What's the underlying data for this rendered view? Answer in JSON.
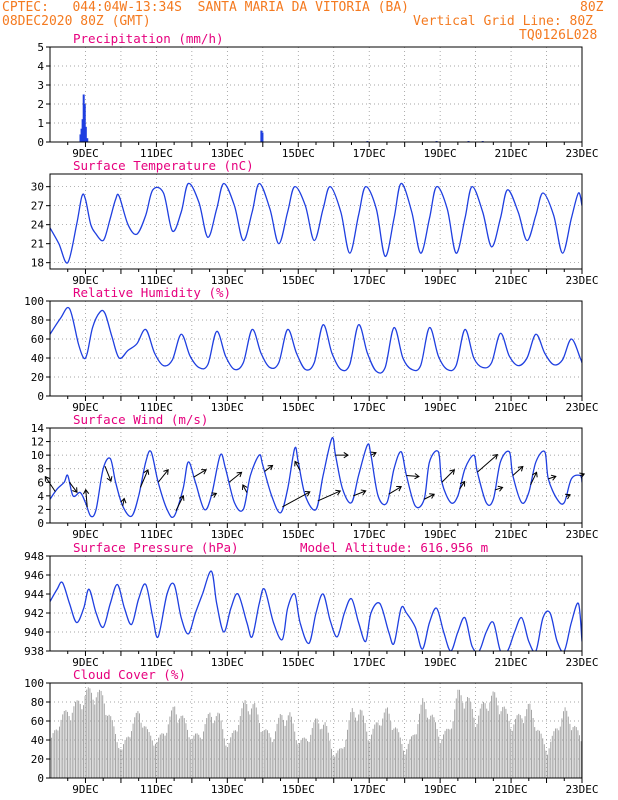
{
  "header": {
    "line1_left": "CPTEC:   044:04W-13:34S  SANTA MARIA DA VITORIA (BA)",
    "line1_right": "80Z",
    "line2_left": "08DEC2020 80Z (GMT)",
    "line2_right": "Vertical Grid Line: 80Z",
    "line3_right": "TQ0126L028"
  },
  "colors": {
    "header": "#f47a20",
    "title": "#e6007e",
    "line": "#1f3fe0",
    "cloud": "#a6a6a6",
    "arrow": "#000000"
  },
  "x_axis": {
    "labels": [
      "9DEC",
      "11DEC",
      "13DEC",
      "15DEC",
      "17DEC",
      "19DEC",
      "21DEC",
      "23DEC"
    ],
    "start_day": 8.0,
    "end_day": 23.0
  },
  "chart_data": [
    {
      "type": "bar",
      "name": "precipitation",
      "title": "Precipitation (mm/h)",
      "ylim": [
        0,
        5
      ],
      "yticks": [
        "0",
        "1",
        "2",
        "3",
        "4",
        "5"
      ],
      "grid": true,
      "x_days": [
        8.86,
        8.89,
        8.92,
        8.95,
        8.98,
        9.01,
        9.05,
        13.96,
        13.99,
        16.95,
        18.9,
        19.8,
        20.2
      ],
      "values": [
        0.4,
        0.7,
        1.2,
        2.5,
        2.0,
        0.8,
        0.2,
        0.6,
        0.5,
        0.05,
        0.05,
        0.05,
        0.05
      ]
    },
    {
      "type": "line",
      "name": "temperature",
      "title": "Surface Temperature (nC)",
      "ylim": [
        17,
        32
      ],
      "yticks": [
        "18",
        "21",
        "24",
        "27",
        "30"
      ],
      "grid": true,
      "x_days": [
        8.0,
        8.25,
        8.5,
        8.75,
        8.9,
        9.0,
        9.15,
        9.3,
        9.45,
        9.55,
        9.7,
        9.85,
        9.95,
        10.2,
        10.45,
        10.7,
        10.9,
        11.2,
        11.45,
        11.7,
        11.9,
        12.2,
        12.45,
        12.7,
        12.9,
        13.2,
        13.45,
        13.7,
        13.9,
        14.2,
        14.45,
        14.7,
        14.9,
        15.2,
        15.45,
        15.7,
        15.9,
        16.2,
        16.45,
        16.7,
        16.9,
        17.2,
        17.45,
        17.7,
        17.9,
        18.2,
        18.45,
        18.7,
        18.9,
        19.2,
        19.45,
        19.7,
        19.9,
        20.2,
        20.45,
        20.7,
        20.9,
        21.2,
        21.45,
        21.7,
        21.9,
        22.2,
        22.45,
        22.7,
        22.9,
        23.0
      ],
      "values": [
        23.5,
        21.0,
        18.0,
        24.0,
        28.5,
        28.0,
        24.0,
        22.5,
        21.5,
        22.0,
        25.0,
        28.0,
        28.5,
        24.0,
        22.5,
        25.5,
        29.5,
        29.0,
        23.0,
        26.0,
        30.5,
        27.5,
        22.0,
        26.5,
        30.5,
        27.0,
        21.5,
        26.0,
        30.5,
        26.5,
        21.0,
        26.0,
        30.0,
        27.0,
        21.5,
        26.5,
        30.0,
        26.0,
        19.5,
        25.5,
        30.0,
        26.5,
        19.0,
        25.0,
        30.5,
        26.0,
        19.5,
        25.0,
        30.0,
        26.5,
        19.5,
        25.0,
        30.0,
        26.0,
        20.5,
        25.0,
        29.5,
        26.0,
        21.5,
        25.5,
        29.0,
        25.5,
        19.5,
        25.0,
        29.0,
        27.0
      ]
    },
    {
      "type": "line",
      "name": "relative_humidity",
      "title": "Relative Humidity (%)",
      "ylim": [
        0,
        100
      ],
      "yticks": [
        "0",
        "20",
        "40",
        "60",
        "80",
        "100"
      ],
      "grid": true,
      "x_days": [
        8.0,
        8.3,
        8.55,
        8.8,
        8.95,
        9.05,
        9.2,
        9.4,
        9.55,
        9.75,
        9.95,
        10.2,
        10.45,
        10.7,
        10.95,
        11.2,
        11.45,
        11.7,
        11.95,
        12.2,
        12.45,
        12.7,
        12.95,
        13.2,
        13.45,
        13.7,
        13.95,
        14.2,
        14.45,
        14.7,
        14.95,
        15.2,
        15.45,
        15.7,
        15.95,
        16.2,
        16.45,
        16.7,
        16.95,
        17.2,
        17.45,
        17.7,
        17.95,
        18.2,
        18.45,
        18.7,
        18.95,
        19.2,
        19.45,
        19.7,
        19.95,
        20.2,
        20.45,
        20.7,
        20.95,
        21.2,
        21.45,
        21.7,
        21.95,
        22.2,
        22.45,
        22.7,
        22.95,
        23.0
      ],
      "values": [
        65,
        82,
        92,
        55,
        40,
        45,
        72,
        88,
        87,
        62,
        40,
        48,
        55,
        70,
        45,
        32,
        38,
        65,
        42,
        30,
        33,
        68,
        42,
        28,
        35,
        70,
        45,
        30,
        35,
        70,
        45,
        28,
        35,
        75,
        45,
        28,
        33,
        75,
        45,
        26,
        30,
        72,
        40,
        28,
        32,
        72,
        42,
        28,
        32,
        70,
        40,
        30,
        35,
        66,
        42,
        32,
        40,
        65,
        45,
        33,
        38,
        60,
        40,
        35
      ]
    },
    {
      "type": "line",
      "name": "surface_wind",
      "title": "Surface Wind (m/s)",
      "ylim": [
        0,
        14
      ],
      "yticks": [
        "0",
        "2",
        "4",
        "6",
        "8",
        "10",
        "12",
        "14"
      ],
      "grid": true,
      "x_days": [
        8.0,
        8.2,
        8.4,
        8.5,
        8.65,
        8.85,
        9.0,
        9.15,
        9.3,
        9.5,
        9.7,
        9.85,
        10.05,
        10.3,
        10.5,
        10.7,
        10.85,
        11.05,
        11.3,
        11.5,
        11.75,
        11.9,
        12.1,
        12.35,
        12.55,
        12.8,
        12.95,
        13.2,
        13.45,
        13.65,
        13.9,
        14.0,
        14.25,
        14.5,
        14.7,
        14.9,
        15.0,
        15.2,
        15.5,
        15.7,
        15.95,
        16.05,
        16.25,
        16.5,
        16.7,
        16.95,
        17.05,
        17.25,
        17.5,
        17.7,
        17.9,
        18.05,
        18.3,
        18.55,
        18.7,
        18.95,
        19.05,
        19.3,
        19.5,
        19.7,
        19.95,
        20.05,
        20.3,
        20.5,
        20.7,
        20.95,
        21.05,
        21.3,
        21.5,
        21.7,
        21.95,
        22.05,
        22.3,
        22.5,
        22.7,
        22.95,
        23.0
      ],
      "values": [
        3.5,
        5.0,
        6.0,
        7.0,
        4.0,
        4.5,
        3.0,
        1.0,
        2.0,
        8.0,
        9.5,
        6.0,
        2.5,
        1.0,
        4.0,
        9.0,
        10.5,
        6.0,
        2.0,
        1.0,
        5.0,
        9.0,
        6.0,
        2.0,
        4.0,
        10.0,
        8.0,
        3.0,
        2.0,
        7.0,
        10.0,
        8.5,
        4.0,
        1.5,
        5.0,
        11.0,
        9.0,
        4.0,
        2.0,
        7.0,
        12.5,
        10.0,
        5.0,
        3.0,
        7.0,
        11.5,
        10.0,
        4.0,
        3.0,
        8.0,
        10.5,
        7.0,
        2.5,
        3.5,
        9.0,
        10.5,
        6.0,
        3.0,
        4.0,
        8.0,
        10.0,
        7.5,
        3.0,
        3.5,
        9.0,
        10.5,
        7.0,
        3.0,
        4.5,
        9.0,
        10.5,
        6.5,
        3.5,
        3.0,
        6.5,
        7.0,
        6.0
      ],
      "vectors": {
        "x_days": [
          8.15,
          8.55,
          9.05,
          9.55,
          10.05,
          10.55,
          11.05,
          11.55,
          12.05,
          12.55,
          13.05,
          13.55,
          14.05,
          14.55,
          15.05,
          15.55,
          16.05,
          16.55,
          17.05,
          17.55,
          18.05,
          18.55,
          19.05,
          19.55,
          20.05,
          20.55,
          21.05,
          21.55,
          22.05,
          22.55,
          22.95
        ],
        "u": [
          -2.0,
          1.5,
          -0.3,
          1.2,
          0.3,
          1.5,
          2.0,
          1.5,
          2.5,
          1.0,
          2.5,
          -0.8,
          1.6,
          5.5,
          -1.0,
          4.5,
          2.5,
          2.5,
          1.0,
          2.5,
          2.5,
          2.0,
          2.5,
          1.0,
          4.0,
          1.5,
          2.0,
          1.2,
          1.5,
          0.8,
          0.8
        ],
        "v": [
          3.0,
          -2.0,
          3.5,
          -3.0,
          1.5,
          3.5,
          2.5,
          3.0,
          1.5,
          0.5,
          2.0,
          1.5,
          1.2,
          3.0,
          1.8,
          2.0,
          0.0,
          1.0,
          0.5,
          1.5,
          -0.2,
          1.0,
          2.5,
          1.5,
          3.5,
          0.5,
          1.8,
          2.5,
          0.5,
          0.4,
          0.3
        ]
      }
    },
    {
      "type": "line",
      "name": "surface_pressure",
      "title": "Surface Pressure (hPa)",
      "subtitle": "Model Altitude: 616.956 m",
      "ylim": [
        938,
        948
      ],
      "yticks": [
        "938",
        "940",
        "942",
        "944",
        "946",
        "948"
      ],
      "grid": true,
      "x_days": [
        8.0,
        8.2,
        8.35,
        8.55,
        8.75,
        8.95,
        9.1,
        9.3,
        9.5,
        9.7,
        9.9,
        10.1,
        10.3,
        10.5,
        10.7,
        10.9,
        11.05,
        11.3,
        11.5,
        11.7,
        11.9,
        12.1,
        12.3,
        12.55,
        12.7,
        12.9,
        13.1,
        13.3,
        13.55,
        13.7,
        13.9,
        14.05,
        14.3,
        14.55,
        14.7,
        14.9,
        15.05,
        15.3,
        15.5,
        15.7,
        15.9,
        16.1,
        16.3,
        16.5,
        16.7,
        16.9,
        17.05,
        17.3,
        17.55,
        17.7,
        17.9,
        18.05,
        18.3,
        18.5,
        18.7,
        18.9,
        19.1,
        19.3,
        19.5,
        19.7,
        19.9,
        20.1,
        20.3,
        20.5,
        20.7,
        20.9,
        21.1,
        21.3,
        21.5,
        21.7,
        21.9,
        22.1,
        22.3,
        22.5,
        22.7,
        22.9,
        23.0
      ],
      "values": [
        943.2,
        944.5,
        945.2,
        943.0,
        941.0,
        942.5,
        944.5,
        942.0,
        940.5,
        943.0,
        945.0,
        942.5,
        940.8,
        943.5,
        945.0,
        941.5,
        939.5,
        944.0,
        945.0,
        941.5,
        939.8,
        942.0,
        944.0,
        946.4,
        943.0,
        940.0,
        942.5,
        944.0,
        941.0,
        939.5,
        943.0,
        944.5,
        941.0,
        939.2,
        942.5,
        944.0,
        941.0,
        938.8,
        942.0,
        944.0,
        941.2,
        939.5,
        942.0,
        943.5,
        941.0,
        939.0,
        942.0,
        943.0,
        940.0,
        938.8,
        942.5,
        942.0,
        940.5,
        938.2,
        941.0,
        942.5,
        940.0,
        937.8,
        940.0,
        941.5,
        938.5,
        937.5,
        940.0,
        941.0,
        938.0,
        937.5,
        940.0,
        941.5,
        939.0,
        938.0,
        941.5,
        942.0,
        939.0,
        938.0,
        941.0,
        943.0,
        939.0
      ]
    },
    {
      "type": "bar",
      "name": "cloud_cover",
      "title": "Cloud Cover (%)",
      "ylim": [
        0,
        100
      ],
      "yticks": [
        "0",
        "20",
        "40",
        "60",
        "80",
        "100"
      ],
      "grid": true,
      "x_days": [
        8.0,
        8.25,
        8.5,
        8.75,
        9.0,
        9.25,
        9.5,
        9.75,
        10.0,
        10.25,
        10.5,
        10.75,
        11.0,
        11.25,
        11.5,
        11.75,
        12.0,
        12.25,
        12.5,
        12.75,
        13.0,
        13.25,
        13.5,
        13.75,
        14.0,
        14.25,
        14.5,
        14.75,
        15.0,
        15.25,
        15.5,
        15.75,
        16.0,
        16.25,
        16.5,
        16.75,
        17.0,
        17.25,
        17.5,
        17.75,
        18.0,
        18.25,
        18.5,
        18.75,
        19.0,
        19.25,
        19.5,
        19.75,
        20.0,
        20.25,
        20.5,
        20.75,
        21.0,
        21.25,
        21.5,
        21.75,
        22.0,
        22.25,
        22.5,
        22.75,
        23.0
      ],
      "values": [
        40,
        65,
        75,
        82,
        95,
        97,
        90,
        60,
        30,
        55,
        75,
        50,
        40,
        55,
        80,
        65,
        45,
        50,
        72,
        70,
        35,
        60,
        85,
        80,
        55,
        45,
        70,
        70,
        40,
        45,
        65,
        60,
        25,
        35,
        75,
        75,
        45,
        65,
        75,
        55,
        30,
        50,
        85,
        70,
        45,
        55,
        95,
        90,
        65,
        85,
        92,
        80,
        60,
        70,
        80,
        55,
        30,
        55,
        75,
        60,
        40
      ]
    }
  ]
}
